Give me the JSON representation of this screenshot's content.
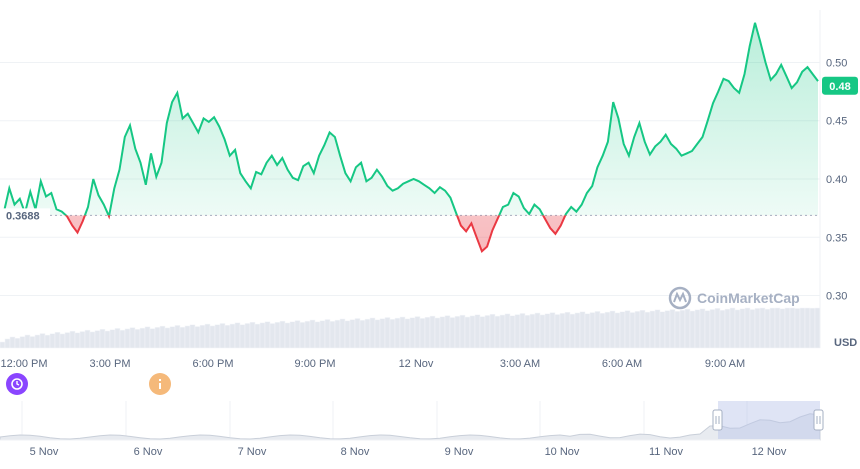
{
  "chart_data": {
    "type": "area",
    "currency_label": "USD",
    "watermark": "CoinMarketCap",
    "reference_value": 0.3688,
    "reference_label": "0.3688",
    "current_value": 0.48,
    "current_label": "0.48",
    "ylim": [
      0.255,
      0.545
    ],
    "y_ticks": [
      {
        "value": 0.3,
        "label": "0.30"
      },
      {
        "value": 0.35,
        "label": "0.35"
      },
      {
        "value": 0.4,
        "label": "0.40"
      },
      {
        "value": 0.45,
        "label": "0.45"
      },
      {
        "value": 0.5,
        "label": "0.50"
      }
    ],
    "x_ticks": [
      "12:00 PM",
      "3:00 PM",
      "6:00 PM",
      "9:00 PM",
      "12 Nov",
      "3:00 AM",
      "6:00 AM",
      "9:00 AM"
    ],
    "navigator_ticks": [
      "5 Nov",
      "6 Nov",
      "7 Nov",
      "8 Nov",
      "9 Nov",
      "10 Nov",
      "11 Nov",
      "12 Nov"
    ],
    "price_series": [
      0.372,
      0.392,
      0.378,
      0.383,
      0.371,
      0.389,
      0.374,
      0.398,
      0.385,
      0.388,
      0.374,
      0.372,
      0.368,
      0.36,
      0.354,
      0.364,
      0.376,
      0.4,
      0.386,
      0.378,
      0.368,
      0.392,
      0.408,
      0.436,
      0.446,
      0.426,
      0.414,
      0.395,
      0.422,
      0.402,
      0.414,
      0.448,
      0.466,
      0.474,
      0.452,
      0.456,
      0.448,
      0.44,
      0.452,
      0.449,
      0.453,
      0.445,
      0.434,
      0.42,
      0.425,
      0.405,
      0.398,
      0.392,
      0.406,
      0.404,
      0.414,
      0.42,
      0.412,
      0.418,
      0.408,
      0.401,
      0.399,
      0.411,
      0.414,
      0.405,
      0.42,
      0.429,
      0.44,
      0.436,
      0.42,
      0.405,
      0.398,
      0.41,
      0.414,
      0.398,
      0.401,
      0.408,
      0.402,
      0.394,
      0.39,
      0.392,
      0.396,
      0.398,
      0.4,
      0.398,
      0.395,
      0.392,
      0.388,
      0.393,
      0.39,
      0.384,
      0.372,
      0.36,
      0.355,
      0.362,
      0.35,
      0.338,
      0.342,
      0.356,
      0.366,
      0.376,
      0.378,
      0.388,
      0.385,
      0.375,
      0.37,
      0.378,
      0.374,
      0.366,
      0.358,
      0.353,
      0.36,
      0.37,
      0.376,
      0.372,
      0.378,
      0.388,
      0.394,
      0.41,
      0.42,
      0.432,
      0.466,
      0.452,
      0.43,
      0.42,
      0.436,
      0.448,
      0.432,
      0.421,
      0.428,
      0.432,
      0.438,
      0.43,
      0.426,
      0.42,
      0.422,
      0.424,
      0.43,
      0.436,
      0.45,
      0.465,
      0.475,
      0.486,
      0.484,
      0.478,
      0.474,
      0.49,
      0.514,
      0.534,
      0.518,
      0.5,
      0.485,
      0.49,
      0.498,
      0.488,
      0.478,
      0.483,
      0.492,
      0.496,
      0.49,
      0.484
    ]
  }
}
